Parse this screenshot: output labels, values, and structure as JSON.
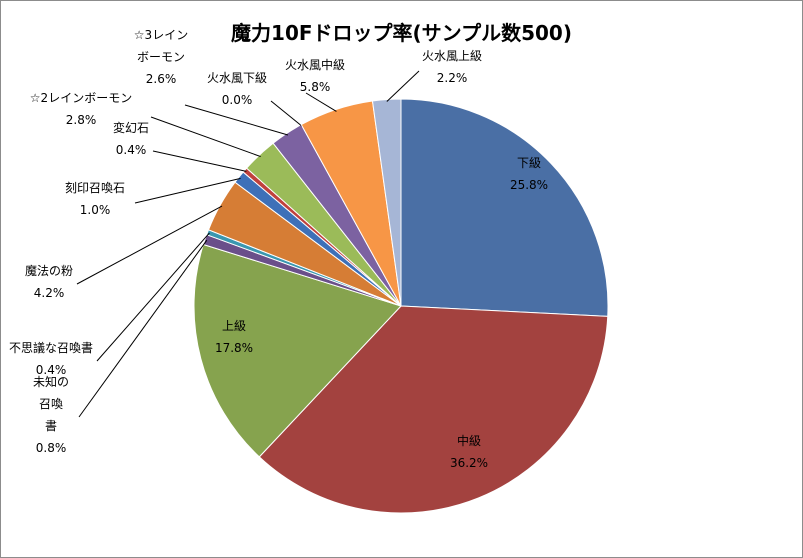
{
  "chart_data": {
    "type": "pie",
    "title": "魔力10Fドロップ率(サンプル数500)",
    "slices": [
      {
        "name": "下級",
        "value": 25.8,
        "value_label": "25.8%",
        "color": "#4a6fa5",
        "label_lines": [
          "下級"
        ]
      },
      {
        "name": "中級",
        "value": 36.2,
        "value_label": "36.2%",
        "color": "#a3423f",
        "label_lines": [
          "中級"
        ]
      },
      {
        "name": "上級",
        "value": 17.8,
        "value_label": "17.8%",
        "color": "#86a34e",
        "label_lines": [
          "上級"
        ]
      },
      {
        "name": "未知の召喚書",
        "value": 0.8,
        "value_label": "0.8%",
        "color": "#6a4f8a",
        "label_lines": [
          "未知の",
          "召喚",
          "書"
        ]
      },
      {
        "name": "不思議な召喚書",
        "value": 0.4,
        "value_label": "0.4%",
        "color": "#3a97b0",
        "label_lines": [
          "不思議な召喚書"
        ]
      },
      {
        "name": "魔法の粉",
        "value": 4.2,
        "value_label": "4.2%",
        "color": "#d67d35",
        "label_lines": [
          "魔法の粉"
        ]
      },
      {
        "name": "刻印召喚石",
        "value": 1.0,
        "value_label": "1.0%",
        "color": "#3e70b8",
        "label_lines": [
          "刻印召喚石"
        ]
      },
      {
        "name": "変幻石",
        "value": 0.4,
        "value_label": "0.4%",
        "color": "#c0413d",
        "label_lines": [
          "変幻石"
        ]
      },
      {
        "name": "☆2レインボーモン",
        "value": 2.8,
        "value_label": "2.8%",
        "color": "#9bbb59",
        "label_lines": [
          "☆2レインボーモン"
        ]
      },
      {
        "name": "☆3レインボーモン",
        "value": 2.6,
        "value_label": "2.6%",
        "color": "#7c62a1",
        "label_lines": [
          "☆3レイン",
          "ボーモン"
        ]
      },
      {
        "name": "火水風下級",
        "value": 0.0,
        "value_label": "0.0%",
        "color": "#4bacc6",
        "label_lines": [
          "火水風下級"
        ]
      },
      {
        "name": "火水風中級",
        "value": 5.8,
        "value_label": "5.8%",
        "color": "#f79646",
        "label_lines": [
          "火水風中級"
        ]
      },
      {
        "name": "火水風上級",
        "value": 2.2,
        "value_label": "2.2%",
        "color": "#a6b6d6",
        "label_lines": [
          "火水風上級"
        ]
      }
    ],
    "legend": "none"
  }
}
